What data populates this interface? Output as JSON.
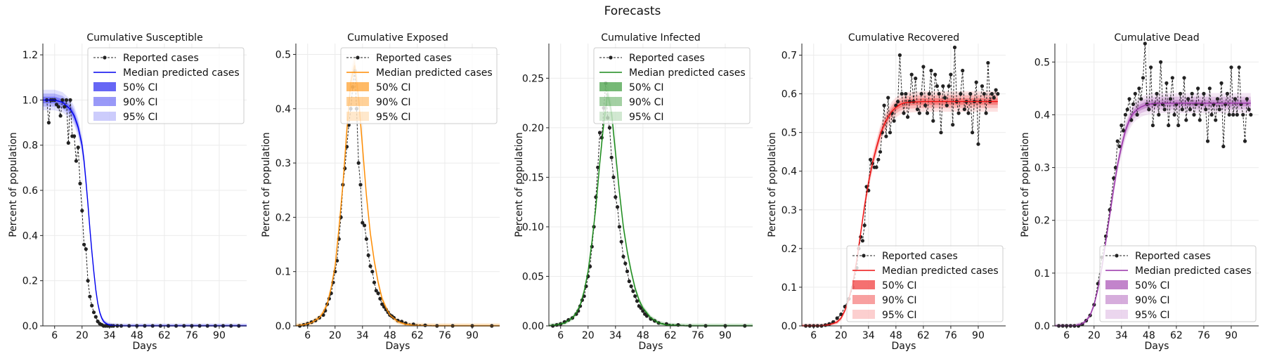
{
  "title": "Forecasts",
  "chart_data": [
    {
      "type": "line",
      "title": "Cumulative Susceptible",
      "xlabel": "Days",
      "ylabel": "Percent of population",
      "xticks": [
        6,
        20,
        34,
        48,
        62,
        76,
        90
      ],
      "yticks": [
        0.0,
        0.2,
        0.4,
        0.6,
        0.8,
        1.0,
        1.2
      ],
      "ytick_labels": [
        "0.0",
        "0.2",
        "0.4",
        "0.6",
        "0.8",
        "1.0",
        "1.2"
      ],
      "xlim": [
        0,
        104
      ],
      "ylim": [
        0,
        1.25
      ],
      "color": "#0000ee",
      "legend_position": "upper-right",
      "legend": [
        "Reported cases",
        "Median predicted cases",
        "50% CI",
        "90% CI",
        "95% CI"
      ],
      "median": {
        "x": [
          0,
          6,
          10,
          14,
          16,
          18,
          20,
          21,
          22,
          23,
          24,
          25,
          26,
          27,
          28,
          29,
          30,
          31,
          32,
          33,
          34,
          36,
          40,
          50,
          104
        ],
        "y": [
          1.0,
          1.0,
          0.99,
          0.96,
          0.93,
          0.88,
          0.8,
          0.73,
          0.64,
          0.54,
          0.43,
          0.33,
          0.24,
          0.16,
          0.1,
          0.06,
          0.035,
          0.02,
          0.012,
          0.007,
          0.004,
          0.002,
          0.0,
          0.0,
          0.0
        ]
      },
      "reported": {
        "x": [
          2,
          3,
          4,
          5,
          6,
          7,
          8,
          9,
          10,
          11,
          12,
          13,
          14,
          15,
          16,
          17,
          18,
          19,
          20,
          21,
          22,
          23,
          24,
          25,
          26,
          27,
          28,
          29,
          30,
          31,
          32,
          33,
          34,
          35,
          36,
          38,
          40,
          44,
          48,
          52,
          56,
          60,
          64,
          68,
          72,
          76,
          80,
          84,
          88,
          92,
          96,
          100
        ],
        "y": [
          1.0,
          0.9,
          1.0,
          1.0,
          1.0,
          0.98,
          0.97,
          0.93,
          1.0,
          0.97,
          1.0,
          0.81,
          1.0,
          0.84,
          0.84,
          0.73,
          0.79,
          0.63,
          0.51,
          0.36,
          0.34,
          0.2,
          0.13,
          0.09,
          0.06,
          0.04,
          0.02,
          0.01,
          0.005,
          0.0,
          0.0,
          0.0,
          0.0,
          0.0,
          0.0,
          0.0,
          0.0,
          0.0,
          0.0,
          0.0,
          0.0,
          0.0,
          0.0,
          0.0,
          0.0,
          0.0,
          0.0,
          0.0,
          0.0,
          0.0,
          0.0,
          0.0
        ]
      }
    },
    {
      "type": "line",
      "title": "Cumulative Exposed",
      "xlabel": "Days",
      "ylabel": "Percent of population",
      "xticks": [
        6,
        20,
        34,
        48,
        62,
        76,
        90
      ],
      "yticks": [
        0.0,
        0.1,
        0.2,
        0.3,
        0.4,
        0.5
      ],
      "ytick_labels": [
        "0.0",
        "0.1",
        "0.2",
        "0.3",
        "0.4",
        "0.5"
      ],
      "xlim": [
        0,
        104
      ],
      "ylim": [
        0,
        0.52
      ],
      "color": "#ff8c00",
      "legend_position": "upper-right",
      "legend": [
        "Reported cases",
        "Median predicted cases",
        "50% CI",
        "90% CI",
        "95% CI"
      ],
      "median": {
        "x": [
          0,
          4,
          8,
          12,
          14,
          16,
          18,
          20,
          22,
          24,
          26,
          28,
          30,
          32,
          34,
          36,
          38,
          40,
          42,
          44,
          46,
          48,
          52,
          56,
          60,
          70,
          104
        ],
        "y": [
          0.0,
          0.002,
          0.006,
          0.015,
          0.025,
          0.04,
          0.07,
          0.11,
          0.18,
          0.26,
          0.36,
          0.45,
          0.48,
          0.42,
          0.33,
          0.24,
          0.17,
          0.12,
          0.08,
          0.05,
          0.033,
          0.02,
          0.008,
          0.003,
          0.001,
          0.0,
          0.0
        ]
      },
      "reported": {
        "x": [
          2,
          4,
          6,
          8,
          10,
          12,
          14,
          15,
          16,
          17,
          18,
          19,
          20,
          21,
          22,
          23,
          24,
          25,
          26,
          27,
          28,
          29,
          30,
          31,
          32,
          33,
          34,
          35,
          36,
          37,
          38,
          39,
          40,
          41,
          42,
          43,
          44,
          45,
          46,
          47,
          48,
          49,
          50,
          52,
          54,
          56,
          60,
          66,
          72,
          80,
          90,
          100
        ],
        "y": [
          0.0,
          0.002,
          0.004,
          0.007,
          0.01,
          0.015,
          0.02,
          0.028,
          0.04,
          0.05,
          0.06,
          0.08,
          0.1,
          0.12,
          0.16,
          0.2,
          0.26,
          0.29,
          0.33,
          0.37,
          0.4,
          0.44,
          0.47,
          0.4,
          0.3,
          0.26,
          0.19,
          0.185,
          0.16,
          0.13,
          0.11,
          0.1,
          0.08,
          0.065,
          0.06,
          0.05,
          0.04,
          0.035,
          0.03,
          0.025,
          0.02,
          0.018,
          0.015,
          0.01,
          0.008,
          0.005,
          0.003,
          0.001,
          0.0,
          0.0,
          0.0,
          0.0
        ]
      }
    },
    {
      "type": "line",
      "title": "Cumulative Infected",
      "xlabel": "Days",
      "ylabel": "Percent of population",
      "xticks": [
        6,
        20,
        34,
        48,
        62,
        76,
        90
      ],
      "yticks": [
        0.0,
        0.05,
        0.1,
        0.15,
        0.2,
        0.25
      ],
      "ytick_labels": [
        "0.00",
        "0.05",
        "0.10",
        "0.15",
        "0.20",
        "0.25"
      ],
      "xlim": [
        0,
        104
      ],
      "ylim": [
        0,
        0.285
      ],
      "color": "#1a8a1a",
      "legend_position": "upper-right",
      "legend": [
        "Reported cases",
        "Median predicted cases",
        "50% CI",
        "90% CI",
        "95% CI"
      ],
      "median": {
        "x": [
          0,
          4,
          8,
          12,
          14,
          16,
          18,
          20,
          22,
          24,
          26,
          28,
          30,
          32,
          34,
          36,
          38,
          40,
          42,
          44,
          46,
          48,
          52,
          56,
          60,
          70,
          104
        ],
        "y": [
          0.0,
          0.001,
          0.003,
          0.008,
          0.013,
          0.021,
          0.035,
          0.055,
          0.085,
          0.12,
          0.165,
          0.205,
          0.235,
          0.215,
          0.175,
          0.135,
          0.1,
          0.075,
          0.055,
          0.038,
          0.026,
          0.018,
          0.008,
          0.003,
          0.001,
          0.0,
          0.0
        ]
      },
      "reported": {
        "x": [
          2,
          4,
          6,
          8,
          10,
          12,
          14,
          15,
          16,
          17,
          18,
          19,
          20,
          21,
          22,
          23,
          24,
          25,
          26,
          27,
          28,
          29,
          30,
          31,
          32,
          33,
          34,
          35,
          36,
          37,
          38,
          39,
          40,
          41,
          42,
          43,
          44,
          45,
          46,
          47,
          48,
          49,
          50,
          52,
          54,
          56,
          60,
          66,
          72,
          80,
          90,
          100
        ],
        "y": [
          0.0,
          0.001,
          0.002,
          0.004,
          0.006,
          0.008,
          0.012,
          0.015,
          0.02,
          0.026,
          0.03,
          0.04,
          0.05,
          0.06,
          0.08,
          0.1,
          0.13,
          0.16,
          0.195,
          0.19,
          0.22,
          0.245,
          0.21,
          0.2,
          0.17,
          0.15,
          0.13,
          0.12,
          0.1,
          0.085,
          0.07,
          0.063,
          0.055,
          0.045,
          0.04,
          0.035,
          0.03,
          0.025,
          0.02,
          0.018,
          0.015,
          0.012,
          0.01,
          0.007,
          0.005,
          0.003,
          0.002,
          0.001,
          0.0,
          0.0,
          0.0,
          0.0
        ]
      }
    },
    {
      "type": "line",
      "title": "Cumulative Recovered",
      "xlabel": "Days",
      "ylabel": "Percent of population",
      "xticks": [
        6,
        20,
        34,
        48,
        62,
        76,
        90
      ],
      "yticks": [
        0.0,
        0.1,
        0.2,
        0.3,
        0.4,
        0.5,
        0.6,
        0.7
      ],
      "ytick_labels": [
        "0.0",
        "0.1",
        "0.2",
        "0.3",
        "0.4",
        "0.5",
        "0.6",
        "0.7"
      ],
      "xlim": [
        0,
        104
      ],
      "ylim": [
        0,
        0.73
      ],
      "color": "#ee1111",
      "legend_position": "lower-right",
      "legend": [
        "Reported cases",
        "Median predicted cases",
        "50% CI",
        "90% CI",
        "95% CI"
      ],
      "median": {
        "x": [
          0,
          10,
          14,
          18,
          20,
          22,
          24,
          26,
          28,
          30,
          32,
          34,
          36,
          38,
          40,
          42,
          44,
          46,
          48,
          50,
          52,
          54,
          58,
          62,
          70,
          80,
          90,
          100
        ],
        "y": [
          0.0,
          0.0,
          0.003,
          0.01,
          0.02,
          0.04,
          0.07,
          0.11,
          0.17,
          0.24,
          0.31,
          0.37,
          0.42,
          0.46,
          0.495,
          0.52,
          0.54,
          0.555,
          0.565,
          0.572,
          0.576,
          0.578,
          0.579,
          0.58,
          0.58,
          0.58,
          0.58,
          0.58
        ]
      },
      "reported": {
        "x": [
          2,
          4,
          6,
          8,
          10,
          12,
          14,
          16,
          18,
          20,
          22,
          24,
          26,
          28,
          29,
          30,
          31,
          32,
          33,
          34,
          35,
          36,
          37,
          38,
          39,
          40,
          41,
          42,
          43,
          44,
          45,
          46,
          47,
          48,
          49,
          50,
          51,
          52,
          53,
          54,
          55,
          56,
          57,
          58,
          59,
          60,
          61,
          62,
          63,
          64,
          65,
          66,
          67,
          68,
          69,
          70,
          71,
          72,
          73,
          74,
          75,
          76,
          77,
          78,
          79,
          80,
          81,
          82,
          83,
          84,
          85,
          86,
          87,
          88,
          89,
          90,
          91,
          92,
          93,
          94,
          95,
          96,
          97,
          98,
          99,
          100
        ],
        "y": [
          0.0,
          0.0,
          0.0,
          0.0,
          0.0,
          0.002,
          0.005,
          0.01,
          0.02,
          0.03,
          0.05,
          0.07,
          0.1,
          0.15,
          0.2,
          0.23,
          0.22,
          0.26,
          0.36,
          0.35,
          0.43,
          0.42,
          0.41,
          0.41,
          0.43,
          0.45,
          0.5,
          0.57,
          0.49,
          0.59,
          0.5,
          0.55,
          0.53,
          0.57,
          0.58,
          0.7,
          0.6,
          0.55,
          0.6,
          0.54,
          0.58,
          0.65,
          0.58,
          0.64,
          0.56,
          0.55,
          0.6,
          0.67,
          0.57,
          0.55,
          0.6,
          0.66,
          0.53,
          0.65,
          0.62,
          0.6,
          0.5,
          0.62,
          0.59,
          0.57,
          0.62,
          0.65,
          0.52,
          0.72,
          0.58,
          0.55,
          0.6,
          0.66,
          0.56,
          0.58,
          0.55,
          0.6,
          0.5,
          0.58,
          0.63,
          0.47,
          0.58,
          0.62,
          0.6,
          0.55,
          0.68,
          0.58,
          0.6,
          0.59,
          0.61,
          0.6
        ]
      }
    },
    {
      "type": "line",
      "title": "Cumulative Dead",
      "xlabel": "Days",
      "ylabel": "Percent of population",
      "xticks": [
        6,
        20,
        34,
        48,
        62,
        76,
        90
      ],
      "yticks": [
        0.0,
        0.1,
        0.2,
        0.3,
        0.4,
        0.5
      ],
      "ytick_labels": [
        "0.0",
        "0.1",
        "0.2",
        "0.3",
        "0.4",
        "0.5"
      ],
      "xlim": [
        0,
        104
      ],
      "ylim": [
        0,
        0.535
      ],
      "color": "#9932a8",
      "legend_position": "lower-right",
      "legend": [
        "Reported cases",
        "Median predicted cases",
        "50% CI",
        "90% CI",
        "95% CI"
      ],
      "median": {
        "x": [
          0,
          10,
          14,
          16,
          18,
          20,
          22,
          24,
          26,
          28,
          30,
          32,
          34,
          36,
          38,
          40,
          42,
          44,
          46,
          48,
          50,
          52,
          56,
          60,
          70,
          80,
          90,
          100
        ],
        "y": [
          0.0,
          0.0,
          0.004,
          0.01,
          0.02,
          0.04,
          0.07,
          0.11,
          0.16,
          0.21,
          0.26,
          0.305,
          0.34,
          0.37,
          0.39,
          0.403,
          0.41,
          0.415,
          0.418,
          0.42,
          0.421,
          0.422,
          0.422,
          0.422,
          0.422,
          0.422,
          0.422,
          0.422
        ]
      },
      "reported": {
        "x": [
          2,
          4,
          6,
          8,
          10,
          12,
          14,
          16,
          18,
          20,
          22,
          24,
          26,
          28,
          30,
          31,
          32,
          33,
          34,
          35,
          36,
          37,
          38,
          39,
          40,
          41,
          42,
          43,
          44,
          45,
          46,
          47,
          48,
          49,
          50,
          51,
          52,
          53,
          54,
          55,
          56,
          57,
          58,
          59,
          60,
          61,
          62,
          63,
          64,
          65,
          66,
          67,
          68,
          69,
          70,
          71,
          72,
          73,
          74,
          75,
          76,
          77,
          78,
          79,
          80,
          81,
          82,
          83,
          84,
          85,
          86,
          87,
          88,
          89,
          90,
          91,
          92,
          93,
          94,
          95,
          96,
          97,
          98,
          99,
          100
        ],
        "y": [
          0.0,
          0.0,
          0.0,
          0.0,
          0.0,
          0.0,
          0.003,
          0.01,
          0.02,
          0.04,
          0.08,
          0.13,
          0.17,
          0.22,
          0.28,
          0.3,
          0.35,
          0.34,
          0.38,
          0.37,
          0.4,
          0.41,
          0.43,
          0.39,
          0.42,
          0.44,
          0.4,
          0.45,
          0.43,
          0.47,
          0.535,
          0.42,
          0.41,
          0.49,
          0.38,
          0.42,
          0.44,
          0.4,
          0.5,
          0.42,
          0.41,
          0.46,
          0.38,
          0.43,
          0.47,
          0.4,
          0.42,
          0.38,
          0.44,
          0.41,
          0.47,
          0.39,
          0.43,
          0.41,
          0.44,
          0.4,
          0.42,
          0.45,
          0.39,
          0.42,
          0.44,
          0.41,
          0.35,
          0.45,
          0.4,
          0.42,
          0.39,
          0.43,
          0.41,
          0.46,
          0.34,
          0.42,
          0.44,
          0.4,
          0.49,
          0.4,
          0.43,
          0.4,
          0.49,
          0.42,
          0.4,
          0.35,
          0.43,
          0.41,
          0.4
        ]
      }
    }
  ]
}
